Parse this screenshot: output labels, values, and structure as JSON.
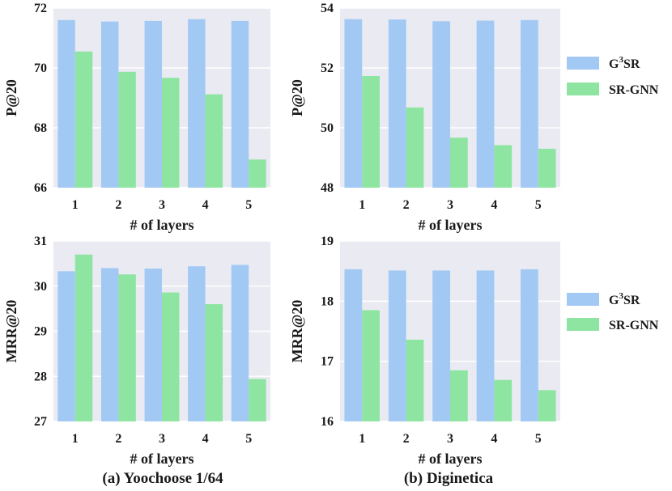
{
  "colors": {
    "g3sr": "#a1c9f4",
    "srgnn": "#8de5a1",
    "plot_bg": "#eaeaf2",
    "grid": "#ffffff"
  },
  "legend": {
    "g3sr_base": "G",
    "g3sr_sup": "3",
    "g3sr_tail": "SR",
    "srgnn": "SR-GNN"
  },
  "captions": {
    "left": "(a) Yoochoose 1/64",
    "right": "(b) Diginetica"
  },
  "chart_data": [
    {
      "type": "bar",
      "id": "yoochoose-p20",
      "categories": [
        "1",
        "2",
        "3",
        "4",
        "5"
      ],
      "xlabel": "# of layers",
      "ylabel": "P@20",
      "ylim": [
        66,
        72
      ],
      "yticks": [
        "66",
        "68",
        "70",
        "72"
      ],
      "series": [
        {
          "name": "G3SR",
          "values": [
            71.6,
            71.55,
            71.57,
            71.63,
            71.57
          ]
        },
        {
          "name": "SR-GNN",
          "values": [
            70.55,
            69.87,
            69.67,
            69.12,
            66.94
          ]
        }
      ]
    },
    {
      "type": "bar",
      "id": "diginetica-p20",
      "categories": [
        "1",
        "2",
        "3",
        "4",
        "5"
      ],
      "xlabel": "# of layers",
      "ylabel": "P@20",
      "ylim": [
        48,
        54
      ],
      "yticks": [
        "48",
        "50",
        "52",
        "54"
      ],
      "series": [
        {
          "name": "G3SR",
          "values": [
            53.63,
            53.62,
            53.56,
            53.58,
            53.6
          ]
        },
        {
          "name": "SR-GNN",
          "values": [
            51.73,
            50.68,
            49.67,
            49.42,
            49.3
          ]
        }
      ]
    },
    {
      "type": "bar",
      "id": "yoochoose-mrr20",
      "categories": [
        "1",
        "2",
        "3",
        "4",
        "5"
      ],
      "xlabel": "# of layers",
      "ylabel": "MRR@20",
      "ylim": [
        27,
        31
      ],
      "yticks": [
        "27",
        "28",
        "29",
        "30",
        "31"
      ],
      "series": [
        {
          "name": "G3SR",
          "values": [
            30.33,
            30.4,
            30.39,
            30.44,
            30.47
          ]
        },
        {
          "name": "SR-GNN",
          "values": [
            30.7,
            30.26,
            29.86,
            29.6,
            27.94
          ]
        }
      ]
    },
    {
      "type": "bar",
      "id": "diginetica-mrr20",
      "categories": [
        "1",
        "2",
        "3",
        "4",
        "5"
      ],
      "xlabel": "# of layers",
      "ylabel": "MRR@20",
      "ylim": [
        16,
        19
      ],
      "yticks": [
        "16",
        "17",
        "18",
        "19"
      ],
      "series": [
        {
          "name": "G3SR",
          "values": [
            18.53,
            18.51,
            18.51,
            18.51,
            18.53
          ]
        },
        {
          "name": "SR-GNN",
          "values": [
            17.85,
            17.36,
            16.85,
            16.69,
            16.52
          ]
        }
      ]
    }
  ]
}
